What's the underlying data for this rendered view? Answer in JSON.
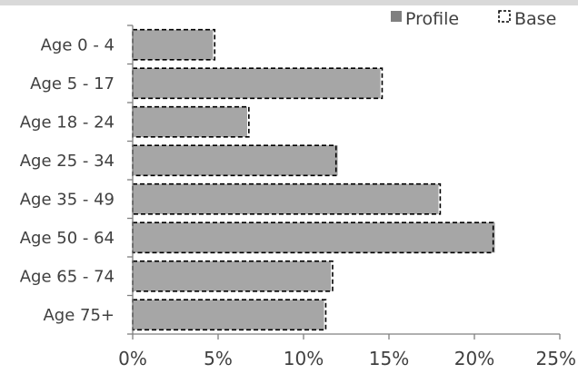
{
  "chart_data": {
    "type": "bar",
    "orientation": "horizontal",
    "title": "",
    "xlabel": "",
    "ylabel": "",
    "categories": [
      "Age 0 - 4",
      "Age 5 - 17",
      "Age 18 - 24",
      "Age 25 - 34",
      "Age 35 - 49",
      "Age 50 - 64",
      "Age 65 - 74",
      "Age 75+"
    ],
    "series": [
      {
        "name": "Profile",
        "style": "solid",
        "color": "#a6a6a6",
        "values": [
          4.7,
          14.5,
          6.7,
          12.0,
          17.9,
          21.2,
          11.6,
          11.2
        ]
      },
      {
        "name": "Base",
        "style": "dashed-outline",
        "color": "#000000",
        "values": [
          4.8,
          14.6,
          6.8,
          11.9,
          18.0,
          21.1,
          11.7,
          11.3
        ]
      }
    ],
    "xlim": [
      0,
      25
    ],
    "xticks": [
      0,
      5,
      10,
      15,
      20,
      25
    ],
    "xtick_labels": [
      "0%",
      "5%",
      "10%",
      "15%",
      "20%",
      "25%"
    ],
    "unit": "%",
    "grid": false,
    "legend_position": "top-right"
  }
}
